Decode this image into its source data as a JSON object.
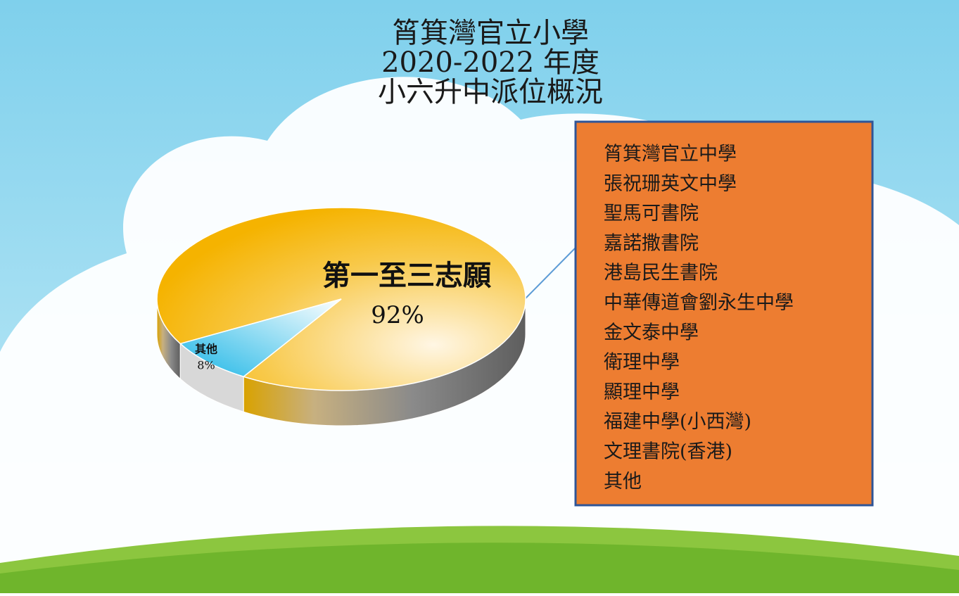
{
  "chart_data": {
    "type": "pie",
    "title": [
      "筲箕灣官立小學",
      "2020-2022 年度",
      "小六升中派位概況"
    ],
    "categories": [
      "第一至三志願",
      "其他"
    ],
    "values": [
      92,
      8
    ],
    "value_labels": [
      "92%",
      "8%"
    ],
    "colors": [
      "#f6b300",
      "#1db6e6"
    ],
    "annotations": [
      "筲箕灣官立中學",
      "張祝珊英文中學",
      "聖馬可書院",
      "嘉諾撒書院",
      "港島民生書院",
      "中華傳道會劉永生中學",
      "金文泰中學",
      "衛理中學",
      "顯理中學",
      "福建中學(小西灣)",
      "文理書院(香港)",
      "其他"
    ]
  }
}
